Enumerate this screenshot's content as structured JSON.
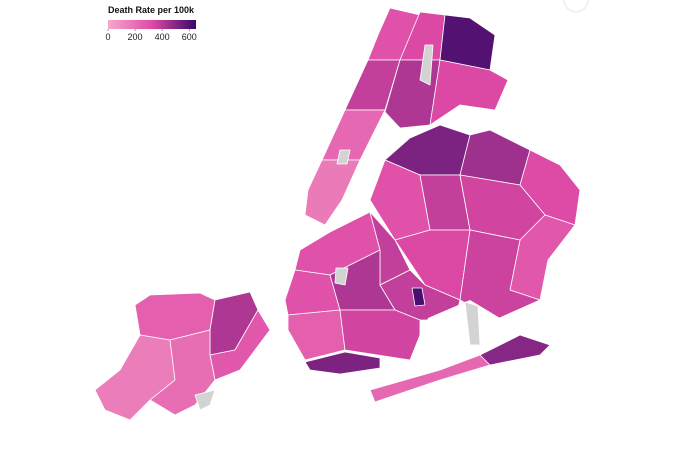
{
  "legend": {
    "title": "Death Rate per 100k",
    "ticks": [
      0,
      200,
      400,
      600
    ],
    "range": [
      0,
      650
    ],
    "colors": [
      "#f7a8cb",
      "#de4aa6",
      "#3a0868"
    ],
    "null_color": "#d3d3d3"
  },
  "region_values": [
    250,
    420,
    280,
    150,
    200,
    null,
    300,
    380,
    220,
    160,
    null,
    330,
    600,
    420,
    330,
    null,
    520,
    450,
    320,
    300,
    380,
    350,
    280,
    330,
    360,
    220,
    500,
    300,
    380,
    300,
    420,
    380,
    250,
    350,
    520,
    620,
    null,
    null
  ]
}
